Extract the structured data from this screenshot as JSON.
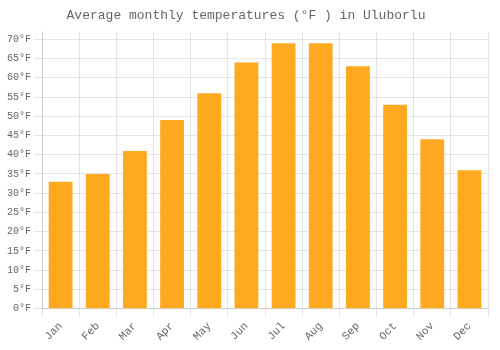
{
  "chart_data": {
    "type": "bar",
    "title": "Average monthly temperatures (°F ) in Uluborlu",
    "categories": [
      "Jan",
      "Feb",
      "Mar",
      "Apr",
      "May",
      "Jun",
      "Jul",
      "Aug",
      "Sep",
      "Oct",
      "Nov",
      "Dec"
    ],
    "values": [
      33,
      35,
      41,
      49,
      56,
      64,
      69,
      69,
      63,
      53,
      44,
      36
    ],
    "color": "#FFA820",
    "ylim": [
      0,
      72
    ],
    "yticks": [
      {
        "value": 0,
        "label": "0°F"
      },
      {
        "value": 5,
        "label": "5°F"
      },
      {
        "value": 10,
        "label": "10°F"
      },
      {
        "value": 15,
        "label": "15°F"
      },
      {
        "value": 20,
        "label": "20°F"
      },
      {
        "value": 25,
        "label": "25°F"
      },
      {
        "value": 30,
        "label": "30°F"
      },
      {
        "value": 35,
        "label": "35°F"
      },
      {
        "value": 40,
        "label": "40°F"
      },
      {
        "value": 45,
        "label": "45°F"
      },
      {
        "value": 50,
        "label": "50°F"
      },
      {
        "value": 55,
        "label": "55°F"
      },
      {
        "value": 60,
        "label": "60°F"
      },
      {
        "value": 65,
        "label": "65°F"
      },
      {
        "value": 70,
        "label": "70°F"
      }
    ],
    "grid": true
  }
}
